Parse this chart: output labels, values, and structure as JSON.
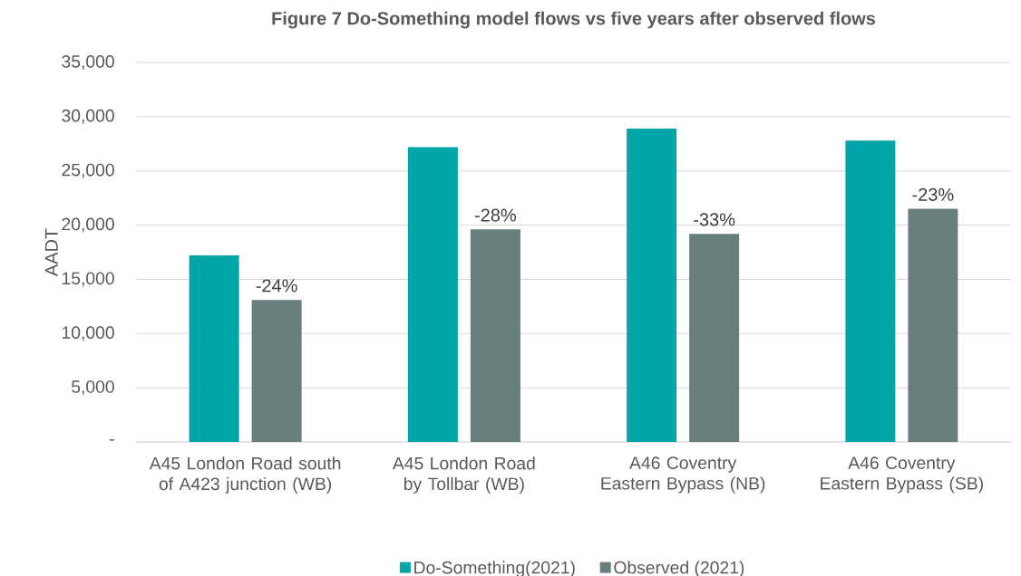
{
  "chart_data": {
    "type": "bar",
    "title": "Figure 7 Do-Something model flows vs five years after observed flows",
    "ylabel": "AADT",
    "categories": [
      "A45 London Road south of A423 junction (WB)",
      "A45 London Road by Tollbar (WB)",
      "A46 Coventry Eastern Bypass (NB)",
      "A46 Coventry Eastern Bypass (SB)"
    ],
    "series": [
      {
        "name": "Do-Something(2021)",
        "color": "#00a5a8",
        "values": [
          17200,
          27200,
          28900,
          27800
        ]
      },
      {
        "name": "Observed (2021)",
        "color": "#687f7e",
        "values": [
          13100,
          19600,
          19200,
          21500
        ]
      }
    ],
    "annotations": [
      "-24%",
      "-28%",
      "-33%",
      "-23%"
    ],
    "ylim": [
      0,
      35000
    ],
    "yticks": [
      {
        "value": 0,
        "label": "-"
      },
      {
        "value": 5000,
        "label": "5,000"
      },
      {
        "value": 10000,
        "label": "10,000"
      },
      {
        "value": 15000,
        "label": "15,000"
      },
      {
        "value": 20000,
        "label": "20,000"
      },
      {
        "value": 25000,
        "label": "25,000"
      },
      {
        "value": 30000,
        "label": "30,000"
      },
      {
        "value": 35000,
        "label": "35,000"
      }
    ],
    "grid": "y",
    "legend": "bottom"
  }
}
